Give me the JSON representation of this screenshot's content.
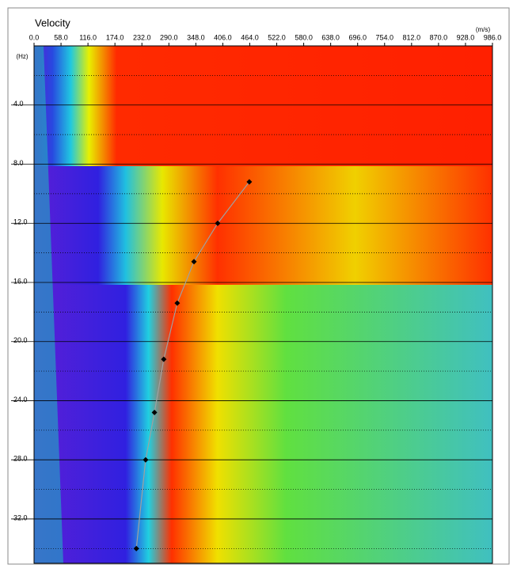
{
  "chart_data": {
    "type": "scatter",
    "title": "Velocity",
    "x_unit": "(m/s)",
    "y_unit": "(Hz)",
    "x": [
      463,
      395,
      344,
      308,
      279,
      259,
      240,
      220
    ],
    "values": [
      9.2,
      12.0,
      14.6,
      17.4,
      21.2,
      24.8,
      28.0,
      34.0
    ],
    "color": "#000000",
    "line_color": "#a0a0a0",
    "xlim": [
      0,
      986
    ],
    "ylim": [
      0,
      35
    ],
    "xticks": [
      {
        "value": 0,
        "label": "0.0"
      },
      {
        "value": 58,
        "label": "58.0"
      },
      {
        "value": 116,
        "label": "116.0"
      },
      {
        "value": 174,
        "label": "174.0"
      },
      {
        "value": 232,
        "label": "232.0"
      },
      {
        "value": 290,
        "label": "290.0"
      },
      {
        "value": 348,
        "label": "348.0"
      },
      {
        "value": 406,
        "label": "406.0"
      },
      {
        "value": 464,
        "label": "464.0"
      },
      {
        "value": 522,
        "label": "522.0"
      },
      {
        "value": 580,
        "label": "580.0"
      },
      {
        "value": 638,
        "label": "638.0"
      },
      {
        "value": 696,
        "label": "696.0"
      },
      {
        "value": 754,
        "label": "754.0"
      },
      {
        "value": 812,
        "label": "812.0"
      },
      {
        "value": 870,
        "label": "870.0"
      },
      {
        "value": 928,
        "label": "928.0"
      },
      {
        "value": 986,
        "label": "986.0"
      }
    ],
    "yticks": [
      {
        "value": 4,
        "label": "4.0"
      },
      {
        "value": 8,
        "label": "8.0"
      },
      {
        "value": 12,
        "label": "12.0"
      },
      {
        "value": 16,
        "label": "16.0"
      },
      {
        "value": 20,
        "label": "20.0"
      },
      {
        "value": 24,
        "label": "24.0"
      },
      {
        "value": 28,
        "label": "28.0"
      },
      {
        "value": 32,
        "label": "32.0"
      }
    ],
    "yminorticks": [
      2,
      6,
      10,
      14,
      18,
      22,
      26,
      30,
      34
    ],
    "grid": true
  }
}
